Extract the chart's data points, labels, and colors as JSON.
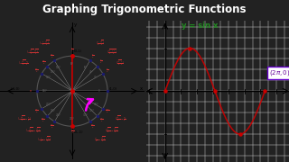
{
  "title": "Graphing Trigonometric Functions",
  "title_fontsize": 8.5,
  "title_color": "#ffffff",
  "title_bg": "#222222",
  "left_bg": "#f0ede8",
  "right_bg": "#e8eaf0",
  "sin_label": "y = sin x",
  "sin_label_color": "#228B22",
  "sin_color": "#cc0000",
  "sin_alpha": 0.9,
  "grid_color": "#cccccc",
  "axis_color": "#000000",
  "dot_color": "#cc0000",
  "arrow_color": "#ff00ff",
  "circle_color": "#555555",
  "unit_pts_color": "#333333",
  "label_2pi_color": "#660099",
  "label_2pi_bg": "#ffffff",
  "label_2pi_border": "#6600cc",
  "angle_label_color": "#cc3333",
  "coord_label_color": "#cc3333"
}
